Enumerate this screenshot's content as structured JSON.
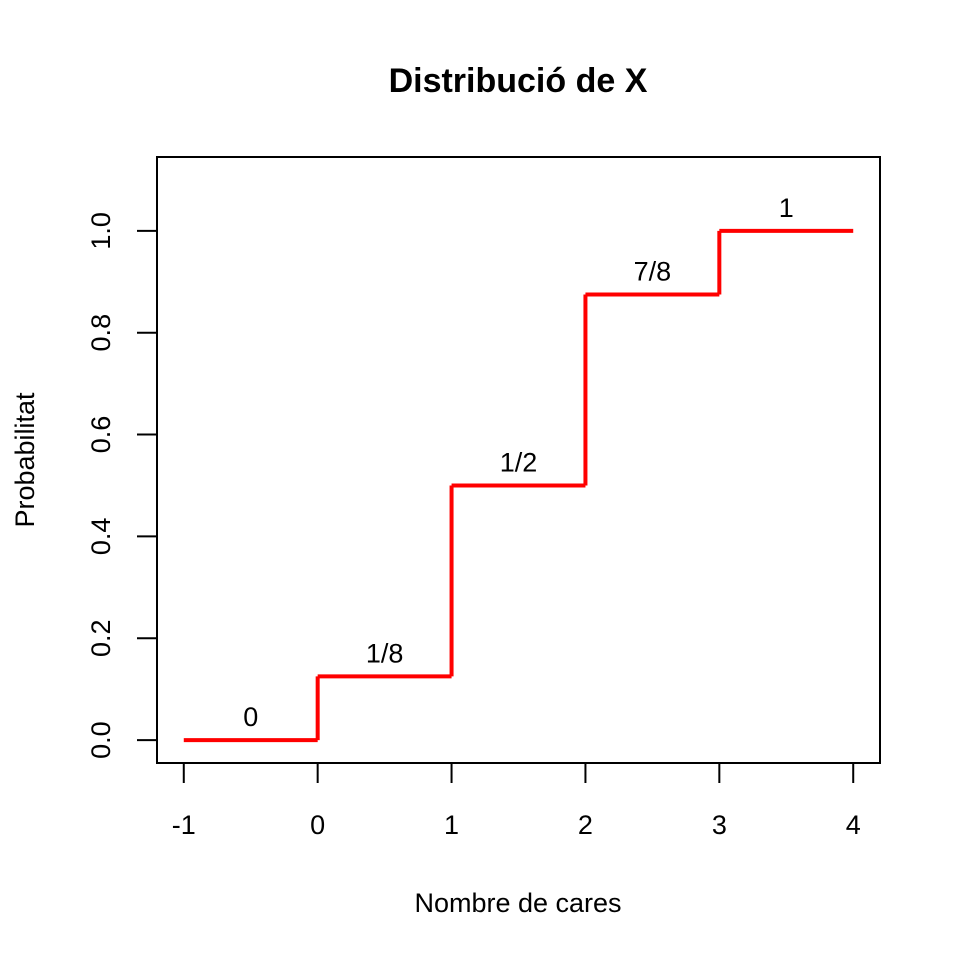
{
  "chart_data": {
    "type": "line",
    "step": true,
    "title": "Distribució de X",
    "xlabel": "Nombre de cares",
    "ylabel": "Probabilitat",
    "xlim": [
      -1.2,
      4.2
    ],
    "ylim": [
      -0.045,
      1.145
    ],
    "xticks": [
      -1,
      0,
      1,
      2,
      3,
      4
    ],
    "xtick_labels": [
      "-1",
      "0",
      "1",
      "2",
      "3",
      "4"
    ],
    "yticks": [
      0,
      0.2,
      0.4,
      0.6,
      0.8,
      1.0
    ],
    "ytick_labels": [
      "0.0",
      "0.2",
      "0.4",
      "0.6",
      "0.8",
      "1.0"
    ],
    "grid": false,
    "line_color": "#ff0000",
    "series": [
      {
        "steps": [
          {
            "x_start": -1,
            "x_end": 0,
            "y": 0,
            "label": "0"
          },
          {
            "x_start": 0,
            "x_end": 1,
            "y": 0.125,
            "label": "1/8"
          },
          {
            "x_start": 1,
            "x_end": 2,
            "y": 0.5,
            "label": "1/2"
          },
          {
            "x_start": 2,
            "x_end": 3,
            "y": 0.875,
            "label": "7/8"
          },
          {
            "x_start": 3,
            "x_end": 4,
            "y": 1,
            "label": "1"
          }
        ]
      }
    ]
  }
}
